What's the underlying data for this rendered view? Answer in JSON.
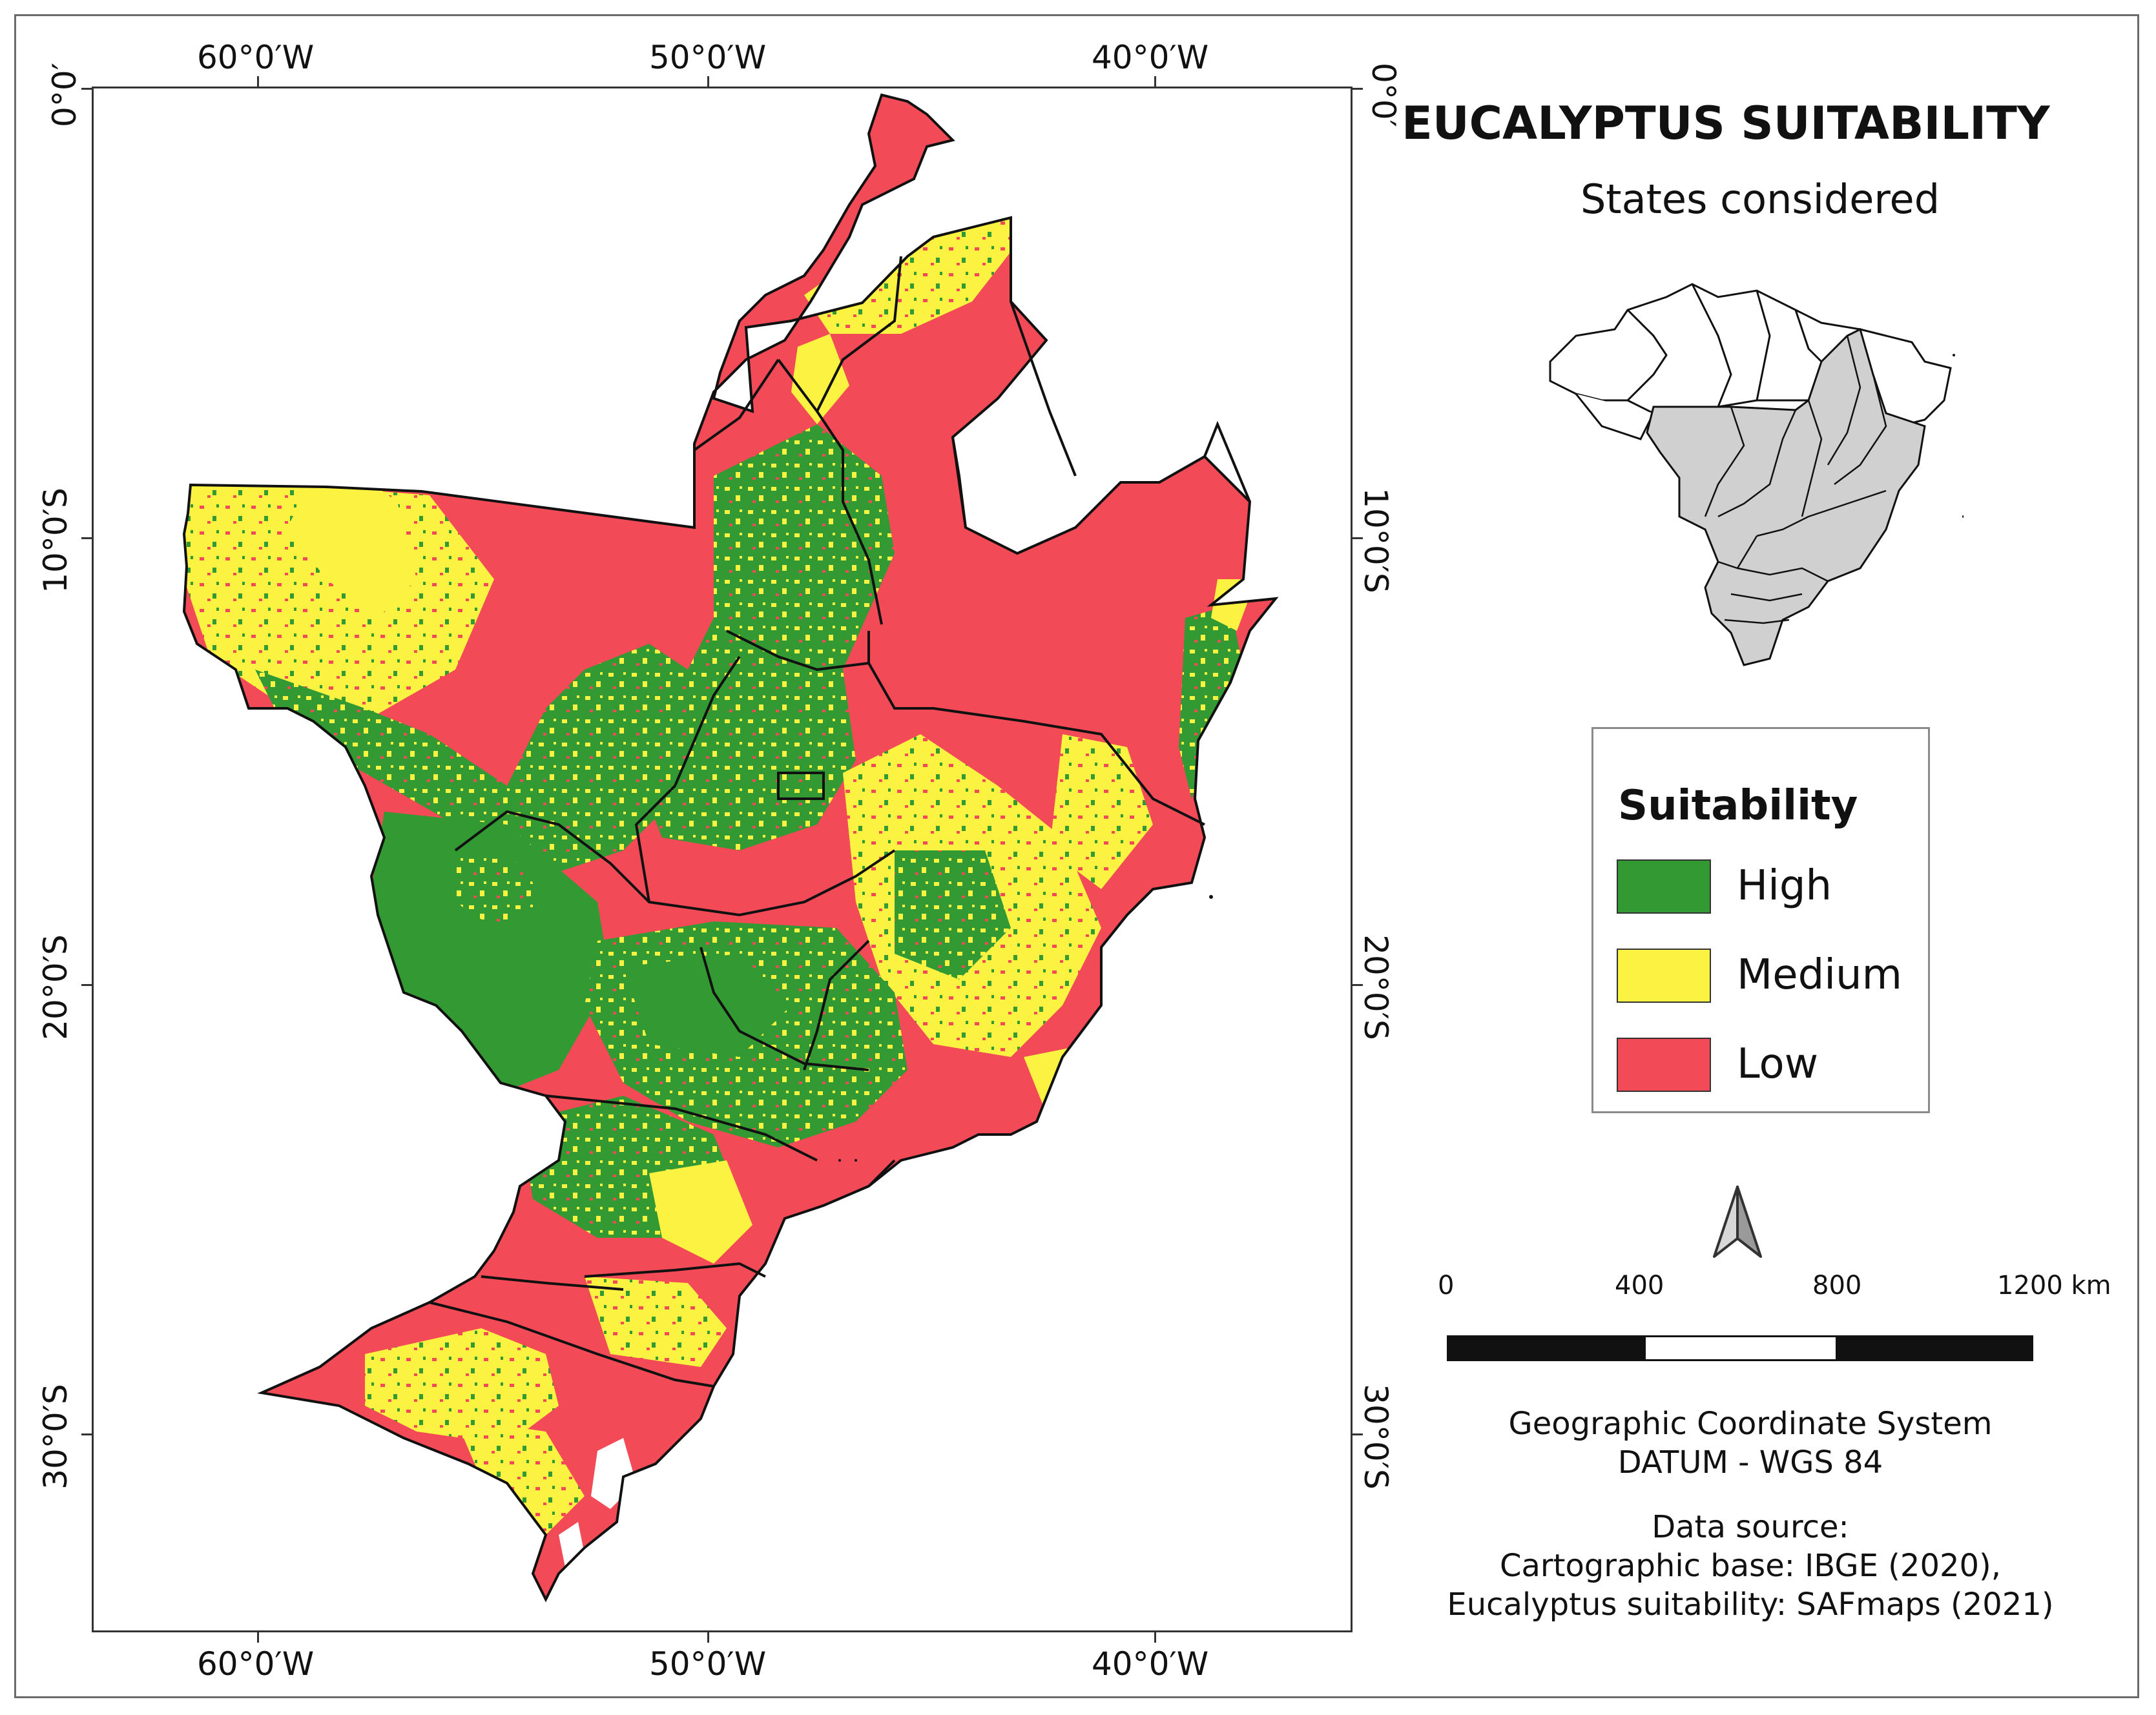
{
  "map": {
    "title": "EUCALYPTUS SUITABILITY",
    "inset_title": "States considered",
    "lon_labels": [
      "60°0′W",
      "50°0′W",
      "40°0′W"
    ],
    "lat_labels": [
      "0°0′",
      "10°0′S",
      "20°0′S",
      "30°0′S"
    ]
  },
  "legend": {
    "title": "Suitability",
    "items": [
      {
        "label": "High",
        "color": "#339933"
      },
      {
        "label": "Medium",
        "color": "#fbf242"
      },
      {
        "label": "Low",
        "color": "#f24a57"
      }
    ]
  },
  "scale": {
    "labels": [
      "0",
      "400",
      "800",
      "1200 km"
    ]
  },
  "info": {
    "crs_line1": "Geographic Coordinate System",
    "crs_line2": "DATUM - WGS 84",
    "source_title": "Data source:",
    "source_line1": "Cartographic base: IBGE (2020),",
    "source_line2": "Eucalyptus suitability: SAFmaps (2021)"
  },
  "colors": {
    "high": "#339933",
    "medium": "#fbf242",
    "low": "#f24a57",
    "inset_fill": "#d0d0d0"
  }
}
